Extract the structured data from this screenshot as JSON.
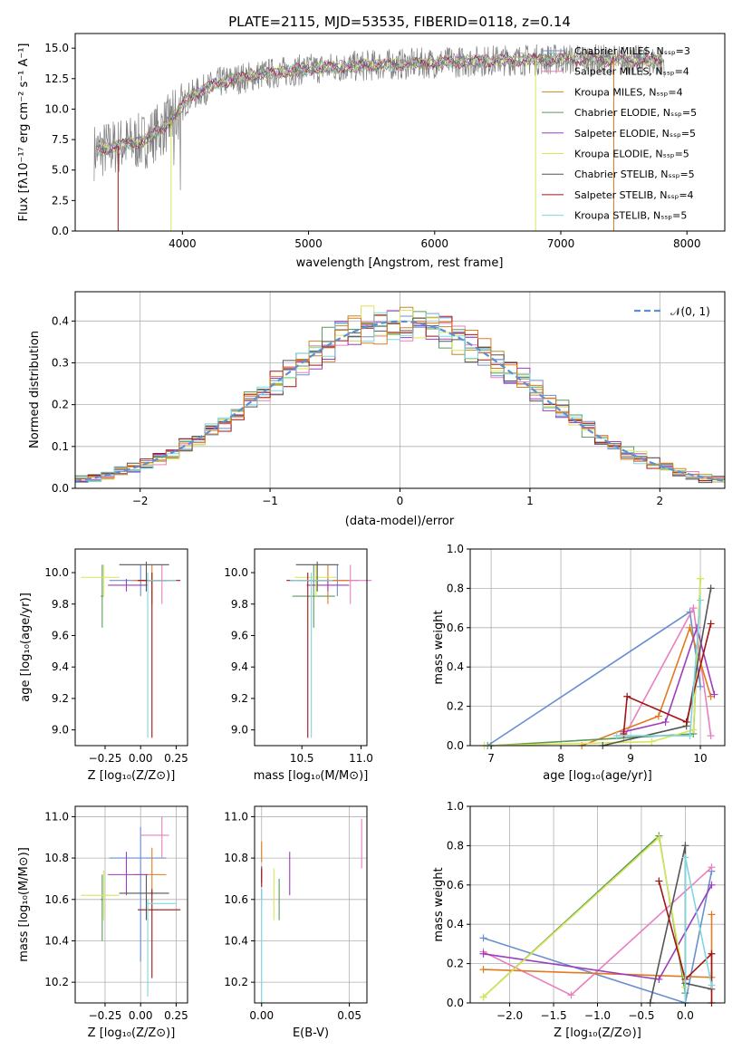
{
  "chart_data": [
    {
      "id": "spectrum",
      "type": "line",
      "title": "PLATE=2115, MJD=53535, FIBERID=0118, z=0.14",
      "xlabel": "wavelength [Angstrom, rest frame]",
      "ylabel": "Flux [fλ10⁻¹⁷ erg cm⁻² s⁻¹ A⁻¹]",
      "xlim": [
        3150,
        8300
      ],
      "ylim": [
        0,
        16.2
      ],
      "xticks": [
        4000,
        5000,
        6000,
        7000,
        8000
      ],
      "yticks": [
        0.0,
        2.5,
        5.0,
        7.5,
        10.0,
        12.5,
        15.0
      ],
      "grid": false,
      "legend_position": "top-right",
      "series": [
        {
          "name": "Chabrier MILES, Nₛₛₚ=3",
          "color": "#6a8fd0"
        },
        {
          "name": "Salpeter MILES, Nₛₛₚ=4",
          "color": "#e97fbf"
        },
        {
          "name": "Kroupa MILES, Nₛₛₚ=4",
          "color": "#c08a2a"
        },
        {
          "name": "Chabrier ELODIE, Nₛₛₚ=5",
          "color": "#5a9a5a"
        },
        {
          "name": "Salpeter ELODIE, Nₛₛₚ=5",
          "color": "#9b3fbd"
        },
        {
          "name": "Kroupa ELODIE, Nₛₛₚ=5",
          "color": "#d9e65a"
        },
        {
          "name": "Chabrier STELIB, Nₛₛₚ=5",
          "color": "#555555"
        },
        {
          "name": "Salpeter STELIB, Nₛₛₚ=4",
          "color": "#a11515"
        },
        {
          "name": "Kroupa STELIB, Nₛₛₚ=5",
          "color": "#7fd6e0"
        }
      ],
      "data_color": "#808080",
      "continuum": {
        "x": [
          3300,
          3500,
          3700,
          3850,
          3950,
          4050,
          4300,
          4600,
          5000,
          5500,
          6000,
          6500,
          7000,
          7500,
          7800
        ],
        "y": [
          6.5,
          7.0,
          7.4,
          8.5,
          9.5,
          11.0,
          12.2,
          12.8,
          13.3,
          13.6,
          13.8,
          14.0,
          14.1,
          14.0,
          13.9
        ]
      },
      "data_range": [
        3300,
        7820
      ]
    },
    {
      "id": "residuals",
      "type": "step",
      "xlabel": "(data-model)/error",
      "ylabel": "Normed distribution",
      "xlim": [
        -2.5,
        2.5
      ],
      "ylim": [
        0,
        0.47
      ],
      "xticks": [
        -2,
        -1,
        0,
        1,
        2
      ],
      "yticks": [
        0.0,
        0.1,
        0.2,
        0.3,
        0.4
      ],
      "grid": true,
      "legend_position": "top-right",
      "legend": [
        "𝒩(0, 1)"
      ],
      "normal_curve": {
        "mean": 0,
        "sigma": 1,
        "color": "#5b8fd6"
      },
      "bins": {
        "start": -2.5,
        "width": 0.1
      }
    },
    {
      "id": "age-vs-Z",
      "type": "scatter",
      "xlabel": "Z [log₁₀(Z/Z⊙)]",
      "ylabel": "age  [log₁₀(age/yr)]",
      "xlim": [
        -0.46,
        0.33
      ],
      "ylim": [
        8.9,
        10.15
      ],
      "xticks": [
        -0.25,
        0.0,
        0.25
      ],
      "xticklabels": [
        "−0.25",
        "0.00",
        "0.25"
      ],
      "yticks": [
        9.0,
        9.2,
        9.4,
        9.6,
        9.8,
        10.0
      ],
      "yticklabels": [
        "9.0",
        "9.2",
        "9.4",
        "9.6",
        "9.8",
        "10.0"
      ],
      "grid": false
    },
    {
      "id": "age-vs-mass",
      "type": "scatter",
      "xlabel": "mass [log₁₀(M/M⊙)]",
      "xlim": [
        10.1,
        11.05
      ],
      "ylim": [
        8.9,
        10.15
      ],
      "xticks": [
        10.5,
        11.0
      ],
      "xticklabels": [
        "10.5",
        "11.0"
      ],
      "yticks": [
        9.0,
        9.2,
        9.4,
        9.6,
        9.8,
        10.0
      ],
      "yticklabels": [
        "9.0",
        "9.2",
        "9.4",
        "9.6",
        "9.8",
        "10.0"
      ],
      "grid": false
    },
    {
      "id": "massweight-vs-age",
      "type": "line",
      "xlabel": "age  [log₁₀(age/yr)]",
      "ylabel": "mass weight",
      "xlim": [
        6.7,
        10.35
      ],
      "ylim": [
        0,
        1.0
      ],
      "xticks": [
        7,
        8,
        9,
        10
      ],
      "xticklabels": [
        "7",
        "8",
        "9",
        "10"
      ],
      "yticks": [
        0.0,
        0.2,
        0.4,
        0.6,
        0.8,
        1.0
      ],
      "yticklabels": [
        "0.0",
        "0.2",
        "0.4",
        "0.6",
        "0.8",
        "1.0"
      ],
      "grid": true,
      "series": [
        {
          "color": "#6a8fd0",
          "x": [
            6.95,
            9.85,
            10.0
          ],
          "y": [
            0.0,
            0.68,
            0.3
          ]
        },
        {
          "color": "#e97fbf",
          "x": [
            8.9,
            9.9,
            10.15
          ],
          "y": [
            0.04,
            0.7,
            0.05
          ]
        },
        {
          "color": "#e07b20",
          "x": [
            8.3,
            9.4,
            9.85,
            10.15
          ],
          "y": [
            0.0,
            0.15,
            0.6,
            0.25
          ]
        },
        {
          "color": "#5a9a5a",
          "x": [
            7.0,
            9.9,
            10.0
          ],
          "y": [
            0.0,
            0.06,
            0.85
          ]
        },
        {
          "color": "#9b3fbd",
          "x": [
            8.9,
            9.5,
            9.95,
            10.2
          ],
          "y": [
            0.07,
            0.12,
            0.6,
            0.26
          ]
        },
        {
          "color": "#d9e65a",
          "x": [
            6.9,
            9.3,
            9.9,
            10.0
          ],
          "y": [
            0.0,
            0.02,
            0.08,
            0.85
          ]
        },
        {
          "color": "#555555",
          "x": [
            8.6,
            9.8,
            10.15
          ],
          "y": [
            0.0,
            0.1,
            0.8
          ]
        },
        {
          "color": "#a11515",
          "x": [
            8.9,
            8.95,
            9.8,
            10.15
          ],
          "y": [
            0.06,
            0.25,
            0.12,
            0.62
          ]
        },
        {
          "color": "#7fd6e0",
          "x": [
            8.8,
            9.85,
            10.0
          ],
          "y": [
            0.05,
            0.05,
            0.74
          ]
        }
      ]
    },
    {
      "id": "mass-vs-Z",
      "type": "scatter",
      "xlabel": "Z [log₁₀(Z/Z⊙)]",
      "ylabel": "mass [log₁₀(M/M⊙)]",
      "xlim": [
        -0.46,
        0.33
      ],
      "ylim": [
        10.1,
        11.05
      ],
      "xticks": [
        -0.25,
        0.0,
        0.25
      ],
      "xticklabels": [
        "−0.25",
        "0.00",
        "0.25"
      ],
      "yticks": [
        10.2,
        10.4,
        10.6,
        10.8,
        11.0
      ],
      "yticklabels": [
        "10.2",
        "10.4",
        "10.6",
        "10.8",
        "11.0"
      ],
      "grid": true
    },
    {
      "id": "mass-vs-EBV",
      "type": "scatter",
      "xlabel": "E(B-V)",
      "xlim": [
        -0.004,
        0.06
      ],
      "ylim": [
        10.1,
        11.05
      ],
      "xticks": [
        0.0,
        0.05
      ],
      "xticklabels": [
        "0.00",
        "0.05"
      ],
      "yticks": [
        10.2,
        10.4,
        10.6,
        10.8,
        11.0
      ],
      "yticklabels": [
        "10.2",
        "10.4",
        "10.6",
        "10.8",
        "11.0"
      ],
      "grid": true
    },
    {
      "id": "massweight-vs-Z",
      "type": "line",
      "xlabel": "Z [log₁₀(Z/Z⊙)]",
      "ylabel": "mass weight",
      "xlim": [
        -2.45,
        0.45
      ],
      "ylim": [
        0,
        1.0
      ],
      "xticks": [
        -2.0,
        -1.5,
        -1.0,
        -0.5,
        0.0
      ],
      "xticklabels": [
        "−2.0",
        "−1.5",
        "−1.0",
        "−0.5",
        "0.0"
      ],
      "yticks": [
        0.0,
        0.2,
        0.4,
        0.6,
        0.8,
        1.0
      ],
      "yticklabels": [
        "0.0",
        "0.2",
        "0.4",
        "0.6",
        "0.8",
        "1.0"
      ],
      "grid": true,
      "series": [
        {
          "color": "#6a8fd0",
          "x": [
            -2.3,
            0.0,
            0.3
          ],
          "y": [
            0.33,
            0.0,
            0.67
          ]
        },
        {
          "color": "#e97fbf",
          "x": [
            -2.3,
            -1.3,
            0.3
          ],
          "y": [
            0.26,
            0.04,
            0.69
          ]
        },
        {
          "color": "#e07b20",
          "x": [
            -2.3,
            0.3,
            0.3
          ],
          "y": [
            0.17,
            0.13,
            0.45
          ]
        },
        {
          "color": "#5a9a5a",
          "x": [
            -2.3,
            -0.3,
            0.0
          ],
          "y": [
            0.03,
            0.85,
            0.05
          ]
        },
        {
          "color": "#9b3fbd",
          "x": [
            -2.3,
            -0.3,
            0.3
          ],
          "y": [
            0.25,
            0.12,
            0.6
          ]
        },
        {
          "color": "#d9e65a",
          "x": [
            -2.3,
            -0.3,
            0.0
          ],
          "y": [
            0.03,
            0.84,
            0.08
          ]
        },
        {
          "color": "#555555",
          "x": [
            -0.4,
            0.0,
            0.0,
            0.3
          ],
          "y": [
            0.0,
            0.8,
            0.1,
            0.07
          ]
        },
        {
          "color": "#a11515",
          "x": [
            -0.3,
            0.0,
            0.3,
            0.3
          ],
          "y": [
            0.62,
            0.12,
            0.25,
            0.0
          ]
        },
        {
          "color": "#7fd6e0",
          "x": [
            0.0,
            0.0,
            0.3
          ],
          "y": [
            0.0,
            0.74,
            0.09
          ]
        }
      ]
    }
  ],
  "error_points": [
    {
      "color": "#6a8fd0",
      "Z": [
        0.0,
        -0.22,
        0.18
      ],
      "age": [
        9.95,
        9.85,
        10.05
      ],
      "mass": [
        10.8,
        10.3,
        10.95
      ],
      "ebv": [
        0.0,
        10.6,
        10.65
      ]
    },
    {
      "color": "#e97fbf",
      "Z": [
        0.15,
        0.0,
        0.2
      ],
      "age": [
        9.95,
        9.8,
        10.05
      ],
      "mass": [
        10.91,
        10.8,
        11.0
      ],
      "ebv": [
        0.057,
        10.75,
        10.99
      ]
    },
    {
      "color": "#e07b20",
      "Z": [
        0.08,
        -0.05,
        0.18
      ],
      "age": [
        9.95,
        9.8,
        10.05
      ],
      "mass": [
        10.72,
        10.62,
        10.85
      ],
      "ebv": [
        0.0,
        10.78,
        10.88
      ]
    },
    {
      "color": "#5a9a5a",
      "Z": [
        -0.27,
        -0.28,
        -0.26
      ],
      "age": [
        9.85,
        9.65,
        10.05
      ],
      "mass": [
        10.6,
        10.4,
        10.72
      ],
      "ebv": [
        0.01,
        10.5,
        10.7
      ]
    },
    {
      "color": "#9b3fbd",
      "Z": [
        -0.1,
        -0.23,
        0.05
      ],
      "age": [
        9.92,
        9.88,
        9.96
      ],
      "mass": [
        10.72,
        10.62,
        10.83
      ],
      "ebv": [
        0.016,
        10.62,
        10.83
      ]
    },
    {
      "color": "#d9e65a",
      "Z": [
        -0.26,
        -0.42,
        -0.15
      ],
      "age": [
        9.97,
        9.85,
        10.05
      ],
      "mass": [
        10.62,
        10.5,
        10.74
      ],
      "ebv": [
        0.007,
        10.5,
        10.75
      ]
    },
    {
      "color": "#555555",
      "Z": [
        0.04,
        -0.15,
        0.2
      ],
      "age": [
        10.05,
        9.88,
        10.07
      ],
      "mass": [
        10.63,
        10.5,
        10.72
      ],
      "ebv": [
        0.0,
        10.68,
        10.76
      ]
    },
    {
      "color": "#a11515",
      "Z": [
        0.08,
        -0.02,
        0.28
      ],
      "age": [
        9.95,
        8.95,
        10.0
      ],
      "mass": [
        10.55,
        10.22,
        10.65
      ],
      "ebv": [
        0.0,
        10.66,
        10.75
      ]
    },
    {
      "color": "#7fd6e0",
      "Z": [
        0.05,
        0.05,
        0.25
      ],
      "age": [
        9.95,
        8.95,
        10.0
      ],
      "mass": [
        10.58,
        10.13,
        10.6
      ],
      "ebv": [
        0.0,
        10.1,
        10.65
      ]
    }
  ]
}
